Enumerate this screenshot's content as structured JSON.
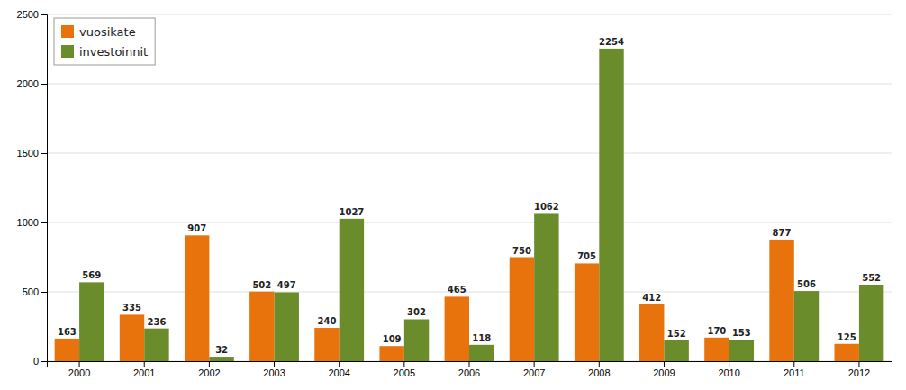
{
  "chart_data": {
    "type": "bar",
    "categories": [
      "2000",
      "2001",
      "2002",
      "2003",
      "2004",
      "2005",
      "2006",
      "2007",
      "2008",
      "2009",
      "2010",
      "2011",
      "2012"
    ],
    "series": [
      {
        "name": "vuosikate",
        "color": "#E8720C",
        "values": [
          163,
          335,
          907,
          502,
          240,
          109,
          465,
          750,
          705,
          412,
          170,
          877,
          125
        ]
      },
      {
        "name": "investoinnit",
        "color": "#6B8C2A",
        "values": [
          569,
          236,
          32,
          497,
          1027,
          302,
          118,
          1062,
          2254,
          152,
          153,
          506,
          552
        ]
      }
    ],
    "ylim": [
      0,
      2500
    ],
    "yticks": [
      0,
      500,
      1000,
      1500,
      2000,
      2500
    ],
    "grid": true,
    "legend": "upper left",
    "data_labels": true
  }
}
